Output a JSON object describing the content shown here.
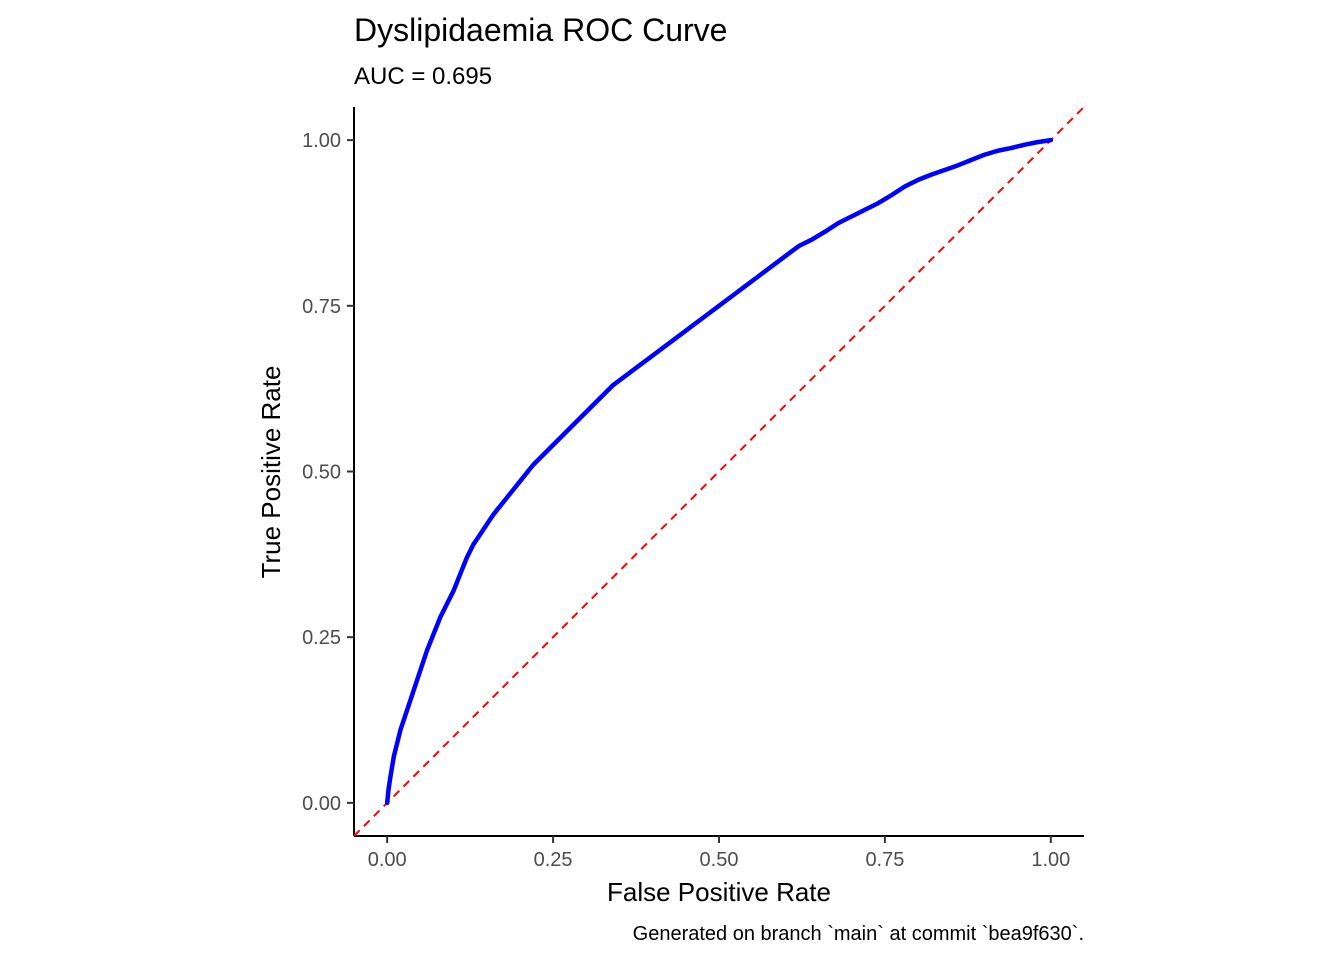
{
  "chart_data": {
    "type": "line",
    "title": "Dyslipidaemia ROC Curve",
    "subtitle": "AUC = 0.695",
    "xlabel": "False Positive Rate",
    "ylabel": "True Positive Rate",
    "caption": "Generated on branch `main` at commit `bea9f630`.",
    "xlim": [
      -0.05,
      1.05
    ],
    "ylim": [
      -0.05,
      1.05
    ],
    "x_ticks": [
      {
        "value": 0,
        "label": "0.00"
      },
      {
        "value": 0.25,
        "label": "0.25"
      },
      {
        "value": 0.5,
        "label": "0.50"
      },
      {
        "value": 0.75,
        "label": "0.75"
      },
      {
        "value": 1,
        "label": "1.00"
      }
    ],
    "y_ticks": [
      {
        "value": 0,
        "label": "0.00"
      },
      {
        "value": 0.25,
        "label": "0.25"
      },
      {
        "value": 0.5,
        "label": "0.50"
      },
      {
        "value": 0.75,
        "label": "0.75"
      },
      {
        "value": 1,
        "label": "1.00"
      }
    ],
    "grid": false,
    "series": [
      {
        "style": "solid",
        "color": "#0000ff",
        "x": [
          0,
          0.002,
          0.005,
          0.01,
          0.015,
          0.02,
          0.03,
          0.04,
          0.05,
          0.06,
          0.07,
          0.08,
          0.09,
          0.1,
          0.11,
          0.12,
          0.13,
          0.14,
          0.15,
          0.16,
          0.18,
          0.2,
          0.22,
          0.24,
          0.26,
          0.28,
          0.3,
          0.32,
          0.34,
          0.36,
          0.38,
          0.4,
          0.42,
          0.44,
          0.46,
          0.48,
          0.5,
          0.52,
          0.54,
          0.56,
          0.58,
          0.6,
          0.62,
          0.64,
          0.66,
          0.68,
          0.7,
          0.72,
          0.74,
          0.76,
          0.78,
          0.8,
          0.82,
          0.84,
          0.86,
          0.88,
          0.9,
          0.92,
          0.94,
          0.96,
          0.98,
          1.0
        ],
        "y": [
          0,
          0.02,
          0.04,
          0.07,
          0.09,
          0.11,
          0.14,
          0.17,
          0.2,
          0.23,
          0.255,
          0.28,
          0.3,
          0.32,
          0.345,
          0.37,
          0.39,
          0.405,
          0.42,
          0.435,
          0.46,
          0.485,
          0.51,
          0.53,
          0.55,
          0.57,
          0.59,
          0.61,
          0.63,
          0.645,
          0.66,
          0.675,
          0.69,
          0.705,
          0.72,
          0.735,
          0.75,
          0.765,
          0.78,
          0.795,
          0.81,
          0.825,
          0.84,
          0.85,
          0.862,
          0.875,
          0.885,
          0.895,
          0.905,
          0.917,
          0.93,
          0.94,
          0.948,
          0.955,
          0.962,
          0.97,
          0.978,
          0.984,
          0.988,
          0.993,
          0.997,
          1.0
        ]
      },
      {
        "style": "dashed",
        "color": "#ff0000",
        "x": [
          -0.05,
          1.05
        ],
        "y": [
          -0.05,
          1.05
        ]
      }
    ]
  }
}
